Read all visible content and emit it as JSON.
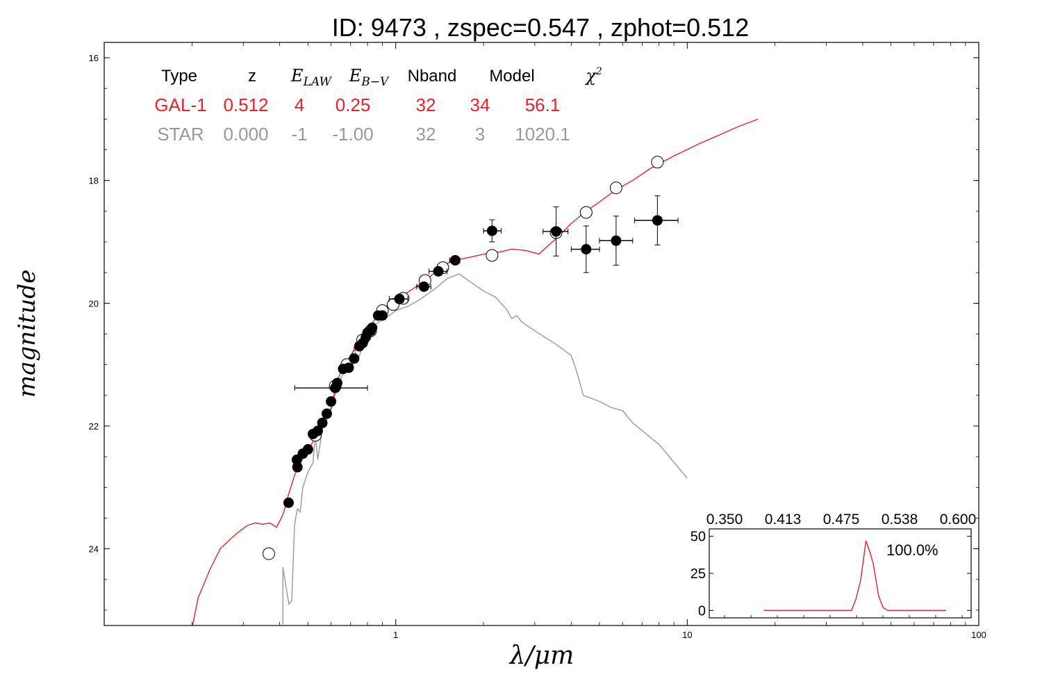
{
  "chart_data": {
    "type": "scatter",
    "title": "ID:  9473  , zspec=0.547 , zphot=0.512",
    "xlabel": "λ/μm",
    "ylabel": "magnitude",
    "xscale": "log",
    "xlim": [
      0.1,
      100
    ],
    "ylim": [
      25.25,
      15.75
    ],
    "x_ticks": [
      "1",
      "10",
      "100"
    ],
    "y_ticks": [
      "16",
      "18",
      "20",
      "22",
      "24"
    ],
    "grid": false,
    "legend_table": {
      "headers": [
        "Type",
        "z",
        "E_LAW",
        "E_B−V",
        "Nband",
        "Model",
        "χ²"
      ],
      "rows": [
        {
          "cells": [
            "GAL-1",
            "0.512",
            "4",
            "0.25",
            "32",
            "34",
            "56.1"
          ],
          "color": "#e8202a"
        },
        {
          "cells": [
            "STAR",
            "0.000",
            "-1",
            "-1.00",
            "32",
            "3",
            "1020.1"
          ],
          "color": "#999999"
        }
      ]
    },
    "series": [
      {
        "name": "GAL-1",
        "kind": "line",
        "color": "#e8202a",
        "points": [
          [
            0.2,
            25.3
          ],
          [
            0.21,
            24.8
          ],
          [
            0.23,
            24.35
          ],
          [
            0.25,
            24.0
          ],
          [
            0.27,
            23.85
          ],
          [
            0.29,
            23.72
          ],
          [
            0.31,
            23.62
          ],
          [
            0.33,
            23.58
          ],
          [
            0.35,
            23.6
          ],
          [
            0.37,
            23.58
          ],
          [
            0.39,
            23.65
          ],
          [
            0.41,
            23.45
          ],
          [
            0.43,
            23.1
          ],
          [
            0.45,
            22.8
          ],
          [
            0.47,
            22.6
          ],
          [
            0.5,
            22.4
          ],
          [
            0.55,
            22.05
          ],
          [
            0.6,
            21.7
          ],
          [
            0.63,
            21.25
          ],
          [
            0.66,
            21.05
          ],
          [
            0.7,
            20.85
          ],
          [
            0.75,
            20.65
          ],
          [
            0.8,
            20.45
          ],
          [
            0.85,
            20.25
          ],
          [
            0.9,
            20.12
          ],
          [
            0.95,
            20.0
          ],
          [
            1.0,
            19.93
          ],
          [
            1.05,
            19.9
          ],
          [
            1.1,
            19.82
          ],
          [
            1.2,
            19.7
          ],
          [
            1.3,
            19.58
          ],
          [
            1.4,
            19.45
          ],
          [
            1.5,
            19.35
          ],
          [
            1.6,
            19.3
          ],
          [
            1.8,
            19.25
          ],
          [
            2.0,
            19.2
          ],
          [
            2.2,
            19.18
          ],
          [
            2.5,
            19.12
          ],
          [
            2.8,
            19.14
          ],
          [
            3.1,
            19.2
          ],
          [
            3.3,
            19.08
          ],
          [
            3.6,
            18.92
          ],
          [
            4.0,
            18.7
          ],
          [
            4.5,
            18.5
          ],
          [
            5.0,
            18.35
          ],
          [
            5.7,
            18.15
          ],
          [
            6.5,
            18.0
          ],
          [
            7.5,
            17.8
          ],
          [
            9.0,
            17.6
          ],
          [
            11,
            17.4
          ],
          [
            13,
            17.25
          ],
          [
            15,
            17.12
          ],
          [
            17.5,
            17.0
          ]
        ]
      },
      {
        "name": "STAR",
        "kind": "line",
        "color": "#999999",
        "points": [
          [
            0.41,
            25.3
          ],
          [
            0.41,
            24.3
          ],
          [
            0.43,
            24.9
          ],
          [
            0.44,
            24.85
          ],
          [
            0.45,
            23.6
          ],
          [
            0.46,
            23.35
          ],
          [
            0.47,
            23.4
          ],
          [
            0.48,
            23.0
          ],
          [
            0.5,
            22.75
          ],
          [
            0.52,
            22.6
          ],
          [
            0.53,
            22.15
          ],
          [
            0.54,
            22.55
          ],
          [
            0.56,
            22.05
          ],
          [
            0.6,
            21.75
          ],
          [
            0.63,
            21.35
          ],
          [
            0.66,
            21.15
          ],
          [
            0.7,
            20.95
          ],
          [
            0.72,
            20.7
          ],
          [
            0.74,
            20.95
          ],
          [
            0.78,
            20.6
          ],
          [
            0.82,
            20.4
          ],
          [
            0.88,
            20.3
          ],
          [
            0.95,
            20.2
          ],
          [
            1.0,
            20.12
          ],
          [
            1.1,
            20.05
          ],
          [
            1.2,
            19.95
          ],
          [
            1.35,
            19.78
          ],
          [
            1.5,
            19.6
          ],
          [
            1.65,
            19.52
          ],
          [
            1.8,
            19.65
          ],
          [
            2.0,
            19.8
          ],
          [
            2.2,
            19.9
          ],
          [
            2.4,
            20.1
          ],
          [
            2.5,
            20.25
          ],
          [
            2.6,
            20.2
          ],
          [
            2.7,
            20.3
          ],
          [
            3.0,
            20.45
          ],
          [
            3.5,
            20.65
          ],
          [
            4.0,
            20.85
          ],
          [
            4.2,
            21.15
          ],
          [
            4.4,
            21.5
          ],
          [
            5.0,
            21.6
          ],
          [
            5.5,
            21.7
          ],
          [
            6.0,
            21.75
          ],
          [
            6.5,
            21.95
          ],
          [
            8.0,
            22.3
          ],
          [
            10.0,
            22.85
          ]
        ]
      },
      {
        "name": "model magnitudes",
        "kind": "open-points",
        "color": "#000000",
        "points": [
          [
            0.367,
            24.08
          ],
          [
            0.53,
            22.15
          ],
          [
            0.62,
            21.35
          ],
          [
            0.68,
            21.0
          ],
          [
            0.77,
            20.6
          ],
          [
            0.82,
            20.45
          ],
          [
            0.9,
            20.12
          ],
          [
            0.98,
            20.02
          ],
          [
            1.06,
            19.92
          ],
          [
            1.26,
            19.63
          ],
          [
            1.45,
            19.42
          ],
          [
            2.14,
            19.22
          ],
          [
            3.55,
            18.85
          ],
          [
            4.5,
            18.52
          ],
          [
            5.7,
            18.12
          ],
          [
            7.9,
            17.7
          ]
        ]
      },
      {
        "name": "observed magnitudes",
        "kind": "filled-points",
        "color": "#000000",
        "points": [
          {
            "x": 0.429,
            "y": 23.25,
            "xerr": [
              0.426,
              0.432
            ],
            "yerr": 0.07
          },
          {
            "x": 0.458,
            "y": 22.55,
            "xerr": [
              0.445,
              0.472
            ],
            "yerr": 0.05
          },
          {
            "x": 0.46,
            "y": 22.67,
            "xerr": [
              0.45,
              0.475
            ],
            "yerr": 0.05
          },
          {
            "x": 0.48,
            "y": 22.45,
            "xerr": [
              0.47,
              0.49
            ],
            "yerr": 0.05
          },
          {
            "x": 0.5,
            "y": 22.38,
            "xerr": [
              0.49,
              0.51
            ],
            "yerr": 0.05
          },
          {
            "x": 0.52,
            "y": 22.13,
            "xerr": [
              0.51,
              0.53
            ],
            "yerr": 0.05
          },
          {
            "x": 0.54,
            "y": 22.08,
            "xerr": [
              0.53,
              0.55
            ],
            "yerr": 0.05
          },
          {
            "x": 0.56,
            "y": 21.95,
            "xerr": [
              0.55,
              0.57
            ],
            "yerr": 0.05
          },
          {
            "x": 0.58,
            "y": 21.8,
            "xerr": [
              0.57,
              0.59
            ],
            "yerr": 0.05
          },
          {
            "x": 0.6,
            "y": 21.6,
            "xerr": [
              0.59,
              0.61
            ],
            "yerr": 0.05
          },
          {
            "x": 0.62,
            "y": 21.38,
            "xerr": [
              0.45,
              0.8
            ],
            "yerr": 0.05
          },
          {
            "x": 0.63,
            "y": 21.3,
            "xerr": [
              0.62,
              0.64
            ],
            "yerr": 0.05
          },
          {
            "x": 0.66,
            "y": 21.07,
            "xerr": [
              0.65,
              0.67
            ],
            "yerr": 0.05
          },
          {
            "x": 0.69,
            "y": 21.05,
            "xerr": [
              0.68,
              0.7
            ],
            "yerr": 0.05
          },
          {
            "x": 0.72,
            "y": 20.9,
            "xerr": [
              0.71,
              0.73
            ],
            "yerr": 0.05
          },
          {
            "x": 0.75,
            "y": 20.7,
            "xerr": [
              0.74,
              0.76
            ],
            "yerr": 0.05
          },
          {
            "x": 0.77,
            "y": 20.65,
            "xerr": [
              0.76,
              0.78
            ],
            "yerr": 0.05
          },
          {
            "x": 0.79,
            "y": 20.55,
            "xerr": [
              0.78,
              0.8
            ],
            "yerr": 0.05
          },
          {
            "x": 0.8,
            "y": 20.48,
            "xerr": [
              0.79,
              0.81
            ],
            "yerr": 0.05
          },
          {
            "x": 0.82,
            "y": 20.45,
            "xerr": [
              0.81,
              0.83
            ],
            "yerr": 0.05
          },
          {
            "x": 0.83,
            "y": 20.4,
            "xerr": [
              0.82,
              0.84
            ],
            "yerr": 0.05
          },
          {
            "x": 0.87,
            "y": 20.2,
            "xerr": [
              0.86,
              0.88
            ],
            "yerr": 0.05
          },
          {
            "x": 0.9,
            "y": 20.2,
            "xerr": [
              0.89,
              0.91
            ],
            "yerr": 0.05
          },
          {
            "x": 1.03,
            "y": 19.93,
            "xerr": [
              0.95,
              1.1
            ],
            "yerr": 0.05
          },
          {
            "x": 1.25,
            "y": 19.73,
            "xerr": [
              1.18,
              1.32
            ],
            "yerr": 0.05
          },
          {
            "x": 1.4,
            "y": 19.48,
            "xerr": [
              1.3,
              1.5
            ],
            "yerr": 0.05
          },
          {
            "x": 1.6,
            "y": 19.3,
            "xerr": [
              1.53,
              1.66
            ],
            "yerr": 0.05
          },
          {
            "x": 2.14,
            "y": 18.82,
            "xerr": [
              2.0,
              2.3
            ],
            "yerr": 0.18
          },
          {
            "x": 3.55,
            "y": 18.83,
            "xerr": [
              3.2,
              3.9
            ],
            "yerr": 0.4
          },
          {
            "x": 4.5,
            "y": 19.12,
            "xerr": [
              4.0,
              5.0
            ],
            "yerr": 0.38
          },
          {
            "x": 5.7,
            "y": 18.98,
            "xerr": [
              5.0,
              6.5
            ],
            "yerr": 0.4
          },
          {
            "x": 7.9,
            "y": 18.65,
            "xerr": [
              6.6,
              9.3
            ],
            "yerr": 0.4
          }
        ]
      }
    ],
    "inset": {
      "type": "line",
      "color": "#e8202a",
      "x_ticks": [
        "0.350",
        "0.413",
        "0.475",
        "0.538",
        "0.600"
      ],
      "y_ticks": [
        "0",
        "25",
        "50"
      ],
      "xlim": [
        0.35,
        0.6
      ],
      "ylim": [
        -5,
        55
      ],
      "annotation": "100.0%",
      "points": [
        [
          0.373,
          0
        ],
        [
          0.47,
          0
        ],
        [
          0.475,
          8
        ],
        [
          0.48,
          20
        ],
        [
          0.486,
          47
        ],
        [
          0.49,
          40
        ],
        [
          0.494,
          32
        ],
        [
          0.5,
          10
        ],
        [
          0.505,
          2
        ],
        [
          0.51,
          0
        ],
        [
          0.575,
          0
        ]
      ]
    }
  }
}
